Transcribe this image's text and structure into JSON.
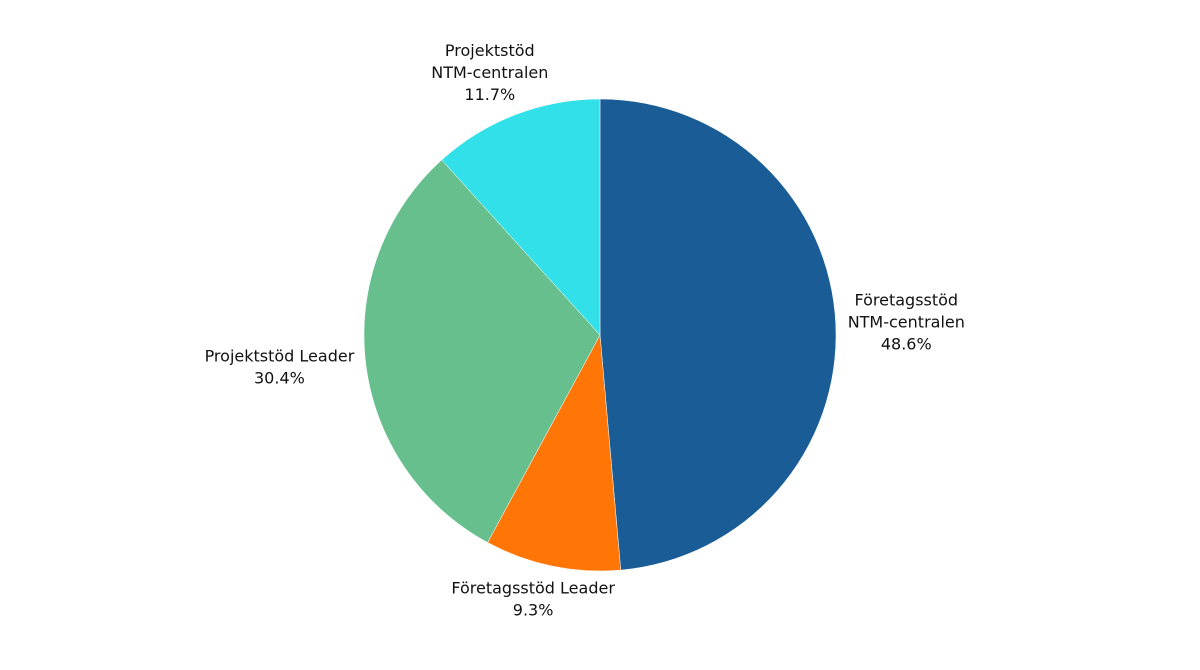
{
  "chart_data": {
    "type": "pie",
    "categories": [
      "Företagsstöd\nNTM-centralen",
      "Företagsstöd Leader",
      "Projektstöd Leader",
      "Projektstöd\nNTM-centralen"
    ],
    "values": [
      48.6,
      9.3,
      30.4,
      11.7
    ],
    "value_labels": [
      "48.6%",
      "9.3%",
      "30.4%",
      "11.7%"
    ],
    "colors": [
      "#1a5c96",
      "#ff7506",
      "#66bf8c",
      "#31e0e8"
    ]
  }
}
